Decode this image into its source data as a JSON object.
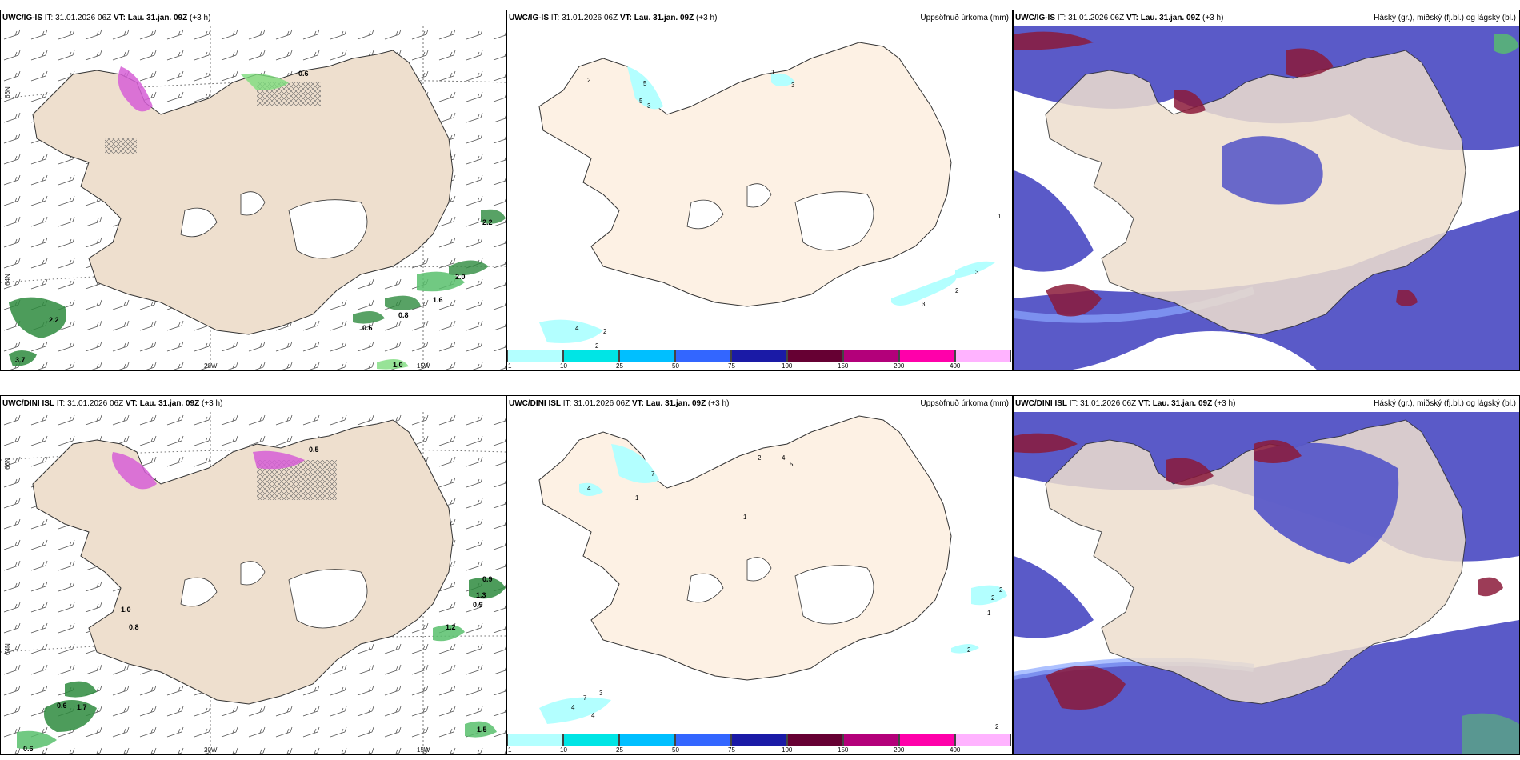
{
  "panels": [
    {
      "model": "UWC/IG-IS",
      "it_label": "IT:",
      "it": "31.01.2026 06Z",
      "vt_label": "VT:",
      "vt": "Lau. 31.jan. 09Z",
      "lead": "(+3 h)",
      "right_title": ""
    },
    {
      "model": "UWC/IG-IS",
      "it_label": "IT:",
      "it": "31.01.2026 06Z",
      "vt_label": "VT:",
      "vt": "Lau. 31.jan. 09Z",
      "lead": "(+3 h)",
      "right_title": "Uppsöfnuð úrkoma (mm)"
    },
    {
      "model": "UWC/IG-IS",
      "it_label": "IT:",
      "it": "31.01.2026 06Z",
      "vt_label": "VT:",
      "vt": "Lau. 31.jan. 09Z",
      "lead": "(+3 h)",
      "right_title": "Háský (gr.), miðský (fj.bl.) og lágský (bl.)"
    },
    {
      "model": "UWC/DINI ISL",
      "it_label": "IT:",
      "it": "31.01.2026 06Z",
      "vt_label": "VT:",
      "vt": "Lau. 31.jan. 09Z",
      "lead": "(+3 h)",
      "right_title": ""
    },
    {
      "model": "UWC/DINI ISL",
      "it_label": "IT:",
      "it": "31.01.2026 06Z",
      "vt_label": "VT:",
      "vt": "Lau. 31.jan. 09Z",
      "lead": "(+3 h)",
      "right_title": "Uppsöfnuð úrkoma (mm)"
    },
    {
      "model": "UWC/DINI ISL",
      "it_label": "IT:",
      "it": "31.01.2026 06Z",
      "vt_label": "VT:",
      "vt": "Lau. 31.jan. 09Z",
      "lead": "(+3 h)",
      "right_title": "Háský (gr.), miðský (fj.bl.) og lágský (bl.)"
    }
  ],
  "axis_ticks": {
    "lat_66": "66N",
    "lat_64": "64N",
    "lon_20": "20W",
    "lon_15": "15W"
  },
  "colorbar": {
    "labels": [
      "1",
      "10",
      "25",
      "50",
      "75",
      "100",
      "150",
      "200",
      "400"
    ],
    "colors": [
      "#b3ffff",
      "#00e5e5",
      "#00bfff",
      "#3366ff",
      "#1a1aa6",
      "#660033",
      "#b3007a",
      "#ff00aa",
      "#ffb3ff"
    ]
  },
  "precip_values_top": [
    "0.6",
    "2.2",
    "2.2",
    "2.0",
    "1.6",
    "0.8",
    "0.6",
    "1.0",
    "3.7"
  ],
  "precip_values_bottom": [
    "0.5",
    "1.0",
    "0.8",
    "0.9",
    "1.3",
    "0.9",
    "1.2",
    "1.5",
    "1.7",
    "0.6",
    "0.6"
  ],
  "accum_values_top": [
    "2",
    "5",
    "5",
    "3",
    "1",
    "3",
    "1",
    "3",
    "2",
    "3",
    "4",
    "2",
    "2"
  ],
  "accum_values_bottom": [
    "4",
    "7",
    "1",
    "1",
    "2",
    "4",
    "5",
    "2",
    "2",
    "1",
    "2",
    "4",
    "7",
    "3",
    "4",
    "2"
  ],
  "colors": {
    "land": "#eedfce",
    "accum_land": "#fdf1e4",
    "mid_cloud": "#5a5ac8",
    "low_cloud": "#8aa6ff",
    "high_cloud": "#8b1a3a",
    "precip_green": "#2e8b3e",
    "snow_pink": "#d65fd6"
  }
}
